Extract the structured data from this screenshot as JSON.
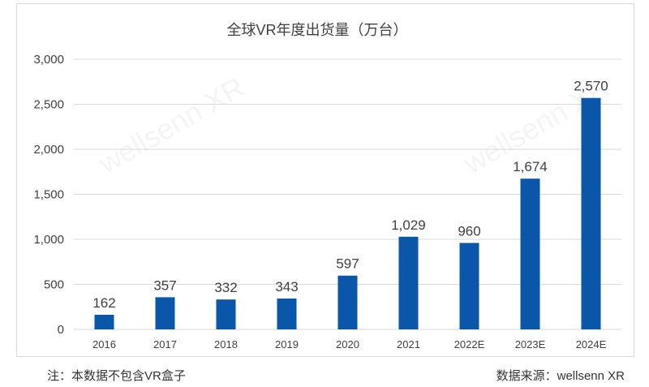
{
  "chart_data": {
    "type": "bar",
    "title": "全球VR年度出货量（万台）",
    "categories": [
      "2016",
      "2017",
      "2018",
      "2019",
      "2020",
      "2021",
      "2022E",
      "2023E",
      "2024E"
    ],
    "values": [
      162,
      357,
      332,
      343,
      597,
      1029,
      960,
      1674,
      2570
    ],
    "value_labels": [
      "162",
      "357",
      "332",
      "343",
      "597",
      "1,029",
      "960",
      "1,674",
      "2,570"
    ],
    "yticks": [
      "0",
      "500",
      "1,000",
      "1,500",
      "2,000",
      "2,500",
      "3,000"
    ],
    "ytick_values": [
      0,
      500,
      1000,
      1500,
      2000,
      2500,
      3000
    ],
    "ylim": [
      0,
      3000
    ],
    "grid": true,
    "bar_color": "#0a56a8",
    "grid_color": "#d9d9d9"
  },
  "watermark": "wellsenn XR",
  "footnote": "注：本数据不包含VR盒子",
  "source": "数据来源：wellsenn XR"
}
